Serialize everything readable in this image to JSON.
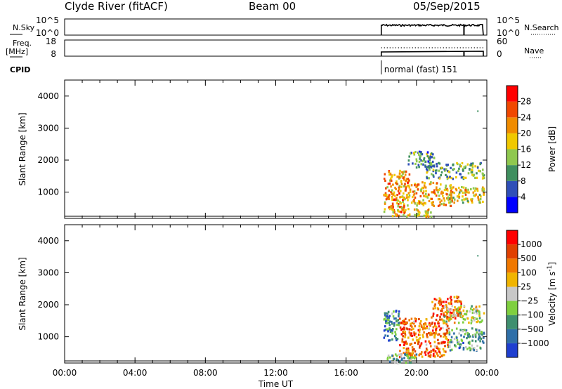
{
  "header": {
    "station": "Clyde River (fitACF)",
    "beam": "Beam 00",
    "date": "05/Sep/2015"
  },
  "side_labels": {
    "nsky": "N.Sky",
    "nsearch": "N.Search",
    "freq": "Freq.",
    "freq_unit": "[MHz]",
    "nave": "Nave",
    "cpid": "CPID"
  },
  "cpid_text": "normal (fast) 151",
  "colors": {
    "power_scale": [
      "#0000ff",
      "#2f4fb8",
      "#3f8f5f",
      "#8fc84f",
      "#f0c800",
      "#f08c00",
      "#f04800",
      "#ff0000"
    ],
    "velocity_scale": [
      "#1f3fd0",
      "#2f6fa8",
      "#3f8f6f",
      "#7fcf3f",
      "#c8c8c8",
      "#f0b400",
      "#f07800",
      "#e04000",
      "#ff0000"
    ]
  },
  "chart_data": [
    {
      "type": "line",
      "title": "",
      "xlabel": "",
      "ylabel": "N.Sky",
      "y_ticks": [
        "10^5",
        "10^0"
      ],
      "y2_label": "N.Search",
      "y2_ticks": [
        "10^5",
        "10^0"
      ],
      "xlim": [
        "00:00",
        "24:00"
      ],
      "series": [
        {
          "x": [
            "18:00",
            "18:00",
            "21:00",
            "22:00",
            "23:30"
          ],
          "values": [
            0,
            3,
            3.1,
            3.2,
            3.1
          ]
        }
      ]
    },
    {
      "type": "line",
      "title": "",
      "ylabel": "Freq. [MHz]",
      "y_ticks": [
        "18",
        "8"
      ],
      "y2_label": "Nave",
      "y2_ticks": [
        "60",
        "0"
      ],
      "xlim": [
        "00:00",
        "24:00"
      ],
      "series": [
        {
          "x": [
            "18:00",
            "18:00",
            "24:00"
          ],
          "values": [
            8,
            10.5,
            10.5
          ]
        },
        {
          "x": [
            "18:00",
            "24:00"
          ],
          "values": [
            37,
            37
          ]
        }
      ]
    },
    {
      "type": "heatmap",
      "title": "",
      "xlabel": "Time UT",
      "ylabel": "Slant Range [km]",
      "ylim": [
        180,
        4500
      ],
      "y_ticks": [
        "1000",
        "2000",
        "3000",
        "4000"
      ],
      "x_ticks": [
        "00:00",
        "04:00",
        "08:00",
        "12:00",
        "16:00",
        "20:00",
        "00:00"
      ],
      "colorbar_label": "Power [dB]",
      "colorbar_ticks": [
        "4",
        "8",
        "12",
        "16",
        "20",
        "24",
        "28"
      ],
      "colorbar_range": [
        0,
        32
      ],
      "blobs": [
        {
          "t0": 18.1,
          "t1": 19.6,
          "r0": 400,
          "r1": 1700,
          "level": 0.7
        },
        {
          "t0": 19.6,
          "t1": 22.0,
          "r0": 600,
          "r1": 1350,
          "level": 0.65
        },
        {
          "t0": 20.5,
          "t1": 23.8,
          "r0": 1450,
          "r1": 1950,
          "level": 0.35
        },
        {
          "t0": 21.8,
          "t1": 23.8,
          "r0": 700,
          "r1": 1200,
          "level": 0.55
        },
        {
          "t0": 18.6,
          "t1": 20.8,
          "r0": 250,
          "r1": 500,
          "level": 0.6
        },
        {
          "t0": 19.5,
          "t1": 21.0,
          "r0": 1800,
          "r1": 2300,
          "level": 0.3
        }
      ]
    },
    {
      "type": "heatmap",
      "title": "",
      "xlabel": "Time UT",
      "ylabel": "Slant Range [km]",
      "ylim": [
        180,
        4500
      ],
      "y_ticks": [
        "1000",
        "2000",
        "3000",
        "4000"
      ],
      "x_ticks": [
        "00:00",
        "04:00",
        "08:00",
        "12:00",
        "16:00",
        "20:00",
        "00:00"
      ],
      "colorbar_label": "Velocity [m s^-1]",
      "colorbar_ticks": [
        "1000",
        "500",
        "100",
        "25",
        "−25",
        "−100",
        "−500",
        "−1000"
      ],
      "blobs": [
        {
          "t0": 18.1,
          "t1": 19.0,
          "r0": 900,
          "r1": 1900,
          "level": 0.2
        },
        {
          "t0": 19.0,
          "t1": 21.8,
          "r0": 400,
          "r1": 1600,
          "level": 0.8
        },
        {
          "t0": 20.8,
          "t1": 22.5,
          "r0": 1600,
          "r1": 2300,
          "level": 0.8
        },
        {
          "t0": 21.8,
          "t1": 23.8,
          "r0": 600,
          "r1": 1300,
          "level": 0.3
        },
        {
          "t0": 21.5,
          "t1": 23.8,
          "r0": 1450,
          "r1": 2000,
          "level": 0.5
        },
        {
          "t0": 18.3,
          "t1": 20.0,
          "r0": 200,
          "r1": 500,
          "level": 0.35
        }
      ]
    }
  ]
}
